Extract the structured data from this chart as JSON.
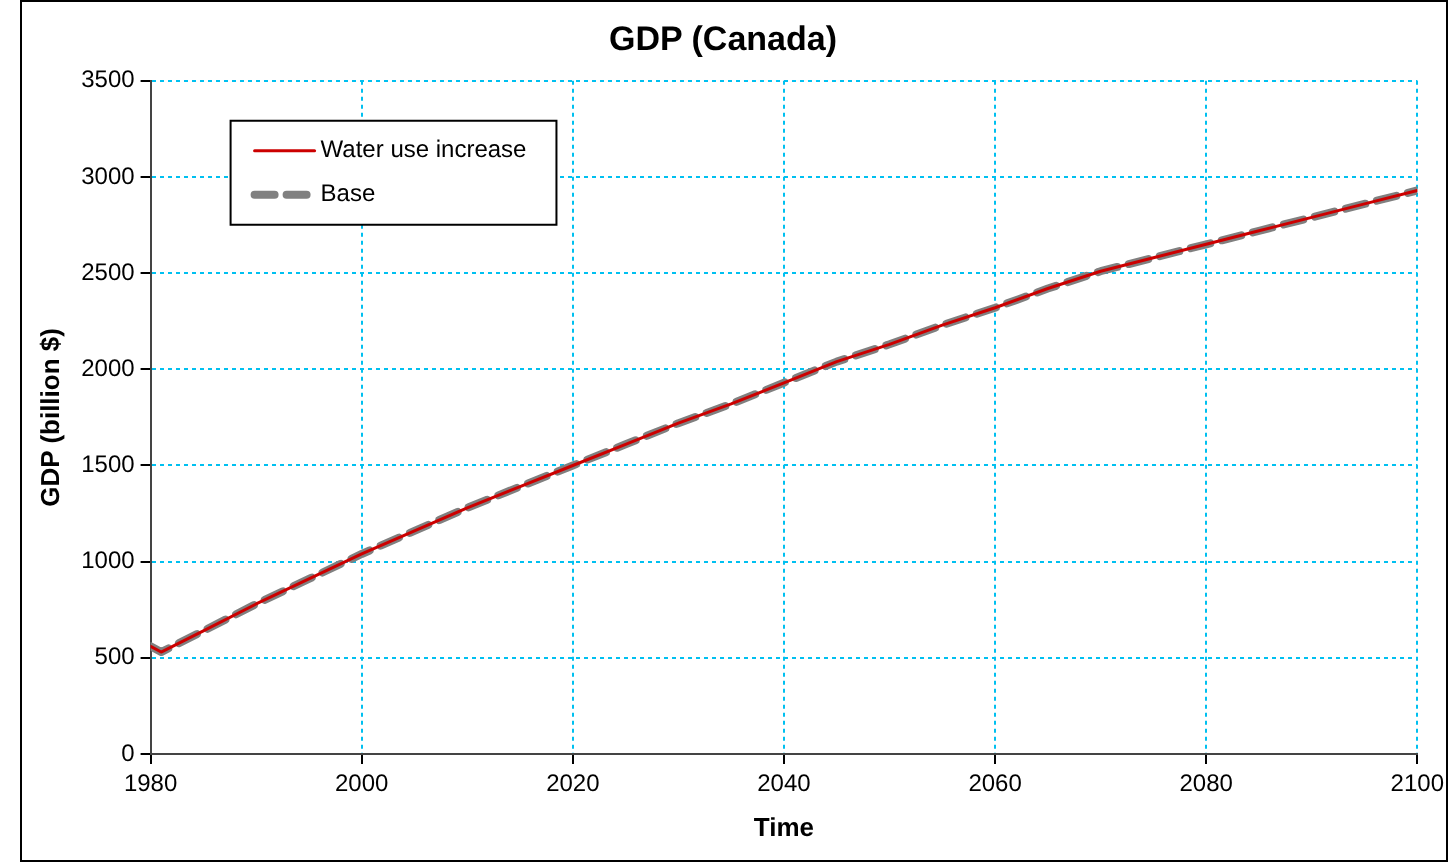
{
  "chart_data": {
    "type": "line",
    "title": "GDP (Canada)",
    "xlabel": "Time",
    "ylabel": "GDP (billion $)",
    "x": [
      1980,
      1981,
      1985,
      1990,
      1995,
      2000,
      2005,
      2010,
      2015,
      2020,
      2025,
      2030,
      2035,
      2040,
      2045,
      2050,
      2055,
      2060,
      2065,
      2070,
      2075,
      2080,
      2085,
      2090,
      2095,
      2100
    ],
    "series": [
      {
        "name": "Water use increase",
        "color": "#cc0000",
        "line_style": "solid",
        "values": [
          560,
          530,
          640,
          780,
          910,
          1040,
          1160,
          1280,
          1390,
          1500,
          1610,
          1720,
          1820,
          1930,
          2040,
          2130,
          2230,
          2320,
          2420,
          2510,
          2580,
          2650,
          2720,
          2790,
          2860,
          2930
        ]
      },
      {
        "name": "Base",
        "color": "#808080",
        "line_style": "dashed",
        "values": [
          560,
          530,
          640,
          780,
          910,
          1040,
          1160,
          1280,
          1390,
          1500,
          1610,
          1720,
          1820,
          1930,
          2040,
          2130,
          2230,
          2320,
          2420,
          2510,
          2580,
          2650,
          2720,
          2790,
          2860,
          2930
        ]
      }
    ],
    "xlim": [
      1980,
      2100
    ],
    "xticks": [
      1980,
      2000,
      2020,
      2040,
      2060,
      2080,
      2100
    ],
    "ylim": [
      0,
      3500
    ],
    "yticks": [
      0,
      500,
      1000,
      1500,
      2000,
      2500,
      3000,
      3500
    ],
    "grid": true,
    "legend": "top left",
    "marker": "none"
  }
}
